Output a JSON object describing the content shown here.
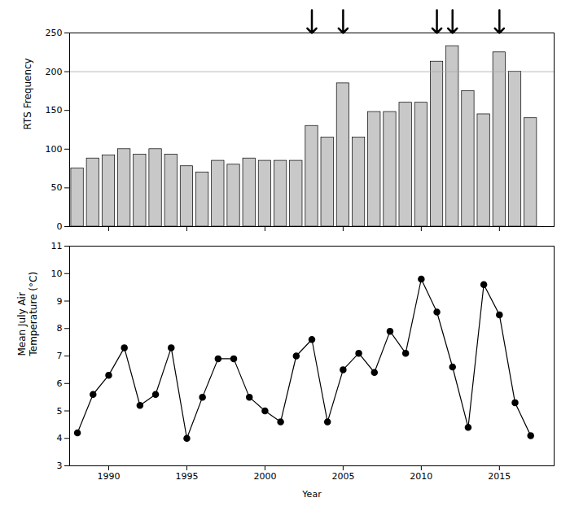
{
  "chart_data": [
    {
      "type": "bar",
      "ylabel": "RTS Frequency",
      "x": [
        1988,
        1989,
        1990,
        1991,
        1992,
        1993,
        1994,
        1995,
        1996,
        1997,
        1998,
        1999,
        2000,
        2001,
        2002,
        2003,
        2004,
        2005,
        2006,
        2007,
        2008,
        2009,
        2010,
        2011,
        2012,
        2013,
        2014,
        2015,
        2016,
        2017
      ],
      "values": [
        75,
        88,
        92,
        100,
        93,
        100,
        93,
        78,
        70,
        85,
        80,
        88,
        85,
        85,
        85,
        130,
        115,
        185,
        115,
        148,
        148,
        160,
        160,
        213,
        233,
        175,
        145,
        225,
        200,
        140
      ],
      "color": "#c8c8c8",
      "xlim": [
        1987.5,
        2018.5
      ],
      "xticks": [
        1990,
        1995,
        2000,
        2005,
        2010,
        2015
      ],
      "ylim": [
        0,
        250
      ],
      "yticks": [
        0,
        50,
        100,
        150,
        200,
        250
      ],
      "tick_labels": "y",
      "hline": 200,
      "arrows": [
        2003,
        2005,
        2011,
        2012,
        2015
      ]
    },
    {
      "type": "line",
      "ylabel": "Mean July Air\nTemperature (°C)",
      "xlabel": "Year",
      "x": [
        1988,
        1989,
        1990,
        1991,
        1992,
        1993,
        1994,
        1995,
        1996,
        1997,
        1998,
        1999,
        2000,
        2001,
        2002,
        2003,
        2004,
        2005,
        2006,
        2007,
        2008,
        2009,
        2010,
        2011,
        2012,
        2013,
        2014,
        2015,
        2016,
        2017
      ],
      "values": [
        4.2,
        5.6,
        6.3,
        7.3,
        5.2,
        5.6,
        7.3,
        4.0,
        5.5,
        6.9,
        6.9,
        5.5,
        5.0,
        4.6,
        7.0,
        7.6,
        4.6,
        6.5,
        7.1,
        6.4,
        7.9,
        7.1,
        9.8,
        8.6,
        6.6,
        4.4,
        9.6,
        8.5,
        5.3,
        4.1
      ],
      "color": "#000000",
      "marker": "circle",
      "xlim": [
        1987.5,
        2018.5
      ],
      "xticks": [
        1990,
        1995,
        2000,
        2005,
        2010,
        2015
      ],
      "ylim": [
        3,
        11
      ],
      "yticks": [
        3,
        4,
        5,
        6,
        7,
        8,
        9,
        10,
        11
      ]
    }
  ]
}
